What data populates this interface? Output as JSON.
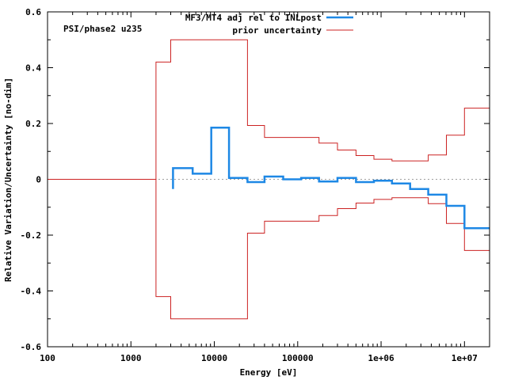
{
  "chart_data": {
    "type": "line",
    "xscale": "log",
    "xlim": [
      100,
      20000000
    ],
    "ylim": [
      -0.6,
      0.6
    ],
    "xlabel": "Energy [eV]",
    "ylabel": "Relative Variation/Uncertainty [no-dim]",
    "annotation": "PSI/phase2 u235",
    "xticks": [
      {
        "value": 100,
        "label": "100"
      },
      {
        "value": 1000,
        "label": "1000"
      },
      {
        "value": 10000,
        "label": "10000"
      },
      {
        "value": 100000,
        "label": "100000"
      },
      {
        "value": 1000000,
        "label": "1e+06"
      },
      {
        "value": 10000000,
        "label": "1e+07"
      }
    ],
    "yticks": [
      {
        "value": 0.6,
        "label": "0.6"
      },
      {
        "value": 0.4,
        "label": "0.4"
      },
      {
        "value": 0.2,
        "label": "0.2"
      },
      {
        "value": 0,
        "label": "0"
      },
      {
        "value": -0.2,
        "label": "-0.2"
      },
      {
        "value": -0.4,
        "label": "-0.4"
      },
      {
        "value": -0.6,
        "label": "-0.6"
      }
    ],
    "series": [
      {
        "name": "MF3/MT4 adj rel to INLpost",
        "color": "#1e88e5",
        "style": "step",
        "edges": [
          3200,
          5500,
          9200,
          15000,
          25000,
          40000,
          67000,
          110000,
          180000,
          300000,
          500000,
          820000,
          1350000,
          2230000,
          3680000,
          6070000,
          10000000,
          20000000
        ],
        "values": [
          0.04,
          0.02,
          0.185,
          0.005,
          -0.01,
          0.01,
          0.0,
          0.005,
          -0.008,
          0.005,
          -0.01,
          -0.005,
          -0.015,
          -0.035,
          -0.055,
          -0.095,
          -0.175
        ]
      },
      {
        "name": "prior uncertainty",
        "color": "#cc2222",
        "style": "step-symmetric",
        "edges": [
          100,
          2000,
          3000,
          25000,
          40000,
          180000,
          300000,
          500000,
          820000,
          1350000,
          3680000,
          6070000,
          10000000,
          20000000
        ],
        "values": [
          0.0,
          0.42,
          0.5,
          0.193,
          0.15,
          0.13,
          0.105,
          0.085,
          0.072,
          0.066,
          0.087,
          0.158,
          0.255
        ]
      }
    ],
    "zero_line": {
      "value": 0,
      "color": "#a0a0a0",
      "style": "dotted"
    },
    "legend": "top-center"
  }
}
